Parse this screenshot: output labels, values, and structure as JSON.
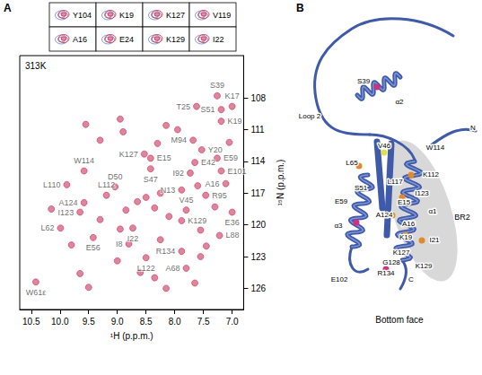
{
  "chart_data": {
    "type": "scatter",
    "panel": "A",
    "annotations": [
      "313K"
    ],
    "x_label": "¹H (p.p.m.)",
    "y_label": "¹⁵N (p.p.m.)",
    "xlim": [
      10.7,
      6.8
    ],
    "xticks": [
      10.5,
      {
        "value": 10,
        "label": "10.0"
      },
      9.5,
      {
        "value": 9,
        "label": "9.0"
      },
      8.5,
      {
        "value": 8,
        "label": "8.0"
      },
      7.5,
      {
        "value": 7,
        "label": "7.0"
      }
    ],
    "ylim": [
      128,
      104
    ],
    "yticks": [
      108,
      111,
      114,
      117,
      120,
      123,
      126
    ],
    "grid": false,
    "color": "#c8325a",
    "marker": "circle",
    "x": [
      7.26,
      7.62,
      7.0,
      7.19,
      7.19,
      7.68,
      7.53,
      8.53,
      8.42,
      7.26,
      7.65,
      8.42,
      9.58,
      7.73,
      7.19,
      7.11,
      9.88,
      9.04,
      9.19,
      9.58,
      7.88,
      7.46,
      9.65,
      7.0,
      7.8,
      7.88,
      9.99,
      8.73,
      7.22,
      9.42,
      8.8,
      7.88,
      8.5,
      7.8,
      10.42,
      9.55,
      9.3,
      8.9,
      8.95,
      8.3,
      8.15,
      7.95,
      8.25,
      7.6,
      7.05,
      8.5,
      8.65,
      8.85,
      8.35,
      8.1,
      7.55,
      7.45,
      8.25,
      8.6,
      9.0,
      8.95,
      9.3,
      10.15,
      9.8,
      9.65,
      8.15,
      7.55,
      8.35,
      7.3,
      7.65,
      9.5
    ],
    "values": [
      107.8,
      108.8,
      108.8,
      109.1,
      110.2,
      112.0,
      112.9,
      113.3,
      113.7,
      113.7,
      114.1,
      114.7,
      114.9,
      115.1,
      114.9,
      116.1,
      116.2,
      116.4,
      117.2,
      117.9,
      116.7,
      117.2,
      118.8,
      118.8,
      118.6,
      119.6,
      120.3,
      120.3,
      121.0,
      121.2,
      121.8,
      122.5,
      123.1,
      124.1,
      125.4,
      110.5,
      112.0,
      111.2,
      110.0,
      112.3,
      110.6,
      111.0,
      117.0,
      116.3,
      112.2,
      117.4,
      117.8,
      118.6,
      118.4,
      119.2,
      120.5,
      122.0,
      121.4,
      124.5,
      123.4,
      120.4,
      119.5,
      118.5,
      121.9,
      124.6,
      126.0,
      123.0,
      125.0,
      118.3,
      125.5,
      125.9
    ],
    "point_labels": [
      "S39",
      "T25",
      "K17",
      "S51",
      "K19",
      "M94",
      "Y20",
      "K127",
      "E15",
      "E59",
      "E42",
      "S47",
      "W114",
      "I92",
      "E101",
      "A16",
      "L110",
      "D50",
      "L112",
      "A124",
      "N13",
      "R95",
      "I123",
      "E36",
      "V45",
      "K129",
      "L62",
      "I22",
      "L88",
      "E56",
      "I8",
      "R134",
      "L122",
      "A68",
      "W61ε",
      null,
      null,
      null,
      null,
      null,
      null,
      null,
      null,
      null,
      null,
      null,
      null,
      null,
      null,
      null,
      null,
      null,
      null,
      null,
      null,
      null,
      null,
      null,
      null,
      null,
      null,
      null,
      null,
      null,
      null,
      null
    ]
  },
  "insets": {
    "cells": [
      [
        "Y104",
        "A16"
      ],
      [
        "K19",
        "E24"
      ],
      [
        "K127",
        "K129"
      ],
      [
        "V119",
        "I22"
      ]
    ]
  },
  "structure": {
    "panel": "B",
    "labels": [
      "S39",
      "α2",
      "Loop 2",
      "N",
      "V46",
      "W114",
      "L65",
      "K112",
      "L117",
      "S51",
      "I123",
      "E59",
      "E15",
      "A124",
      "α1",
      "A16",
      "α3",
      "K19",
      "I21",
      "K127",
      "G128",
      "K129",
      "E102",
      "R134",
      "C"
    ],
    "region": "BR2",
    "caption": "Bottom face"
  }
}
